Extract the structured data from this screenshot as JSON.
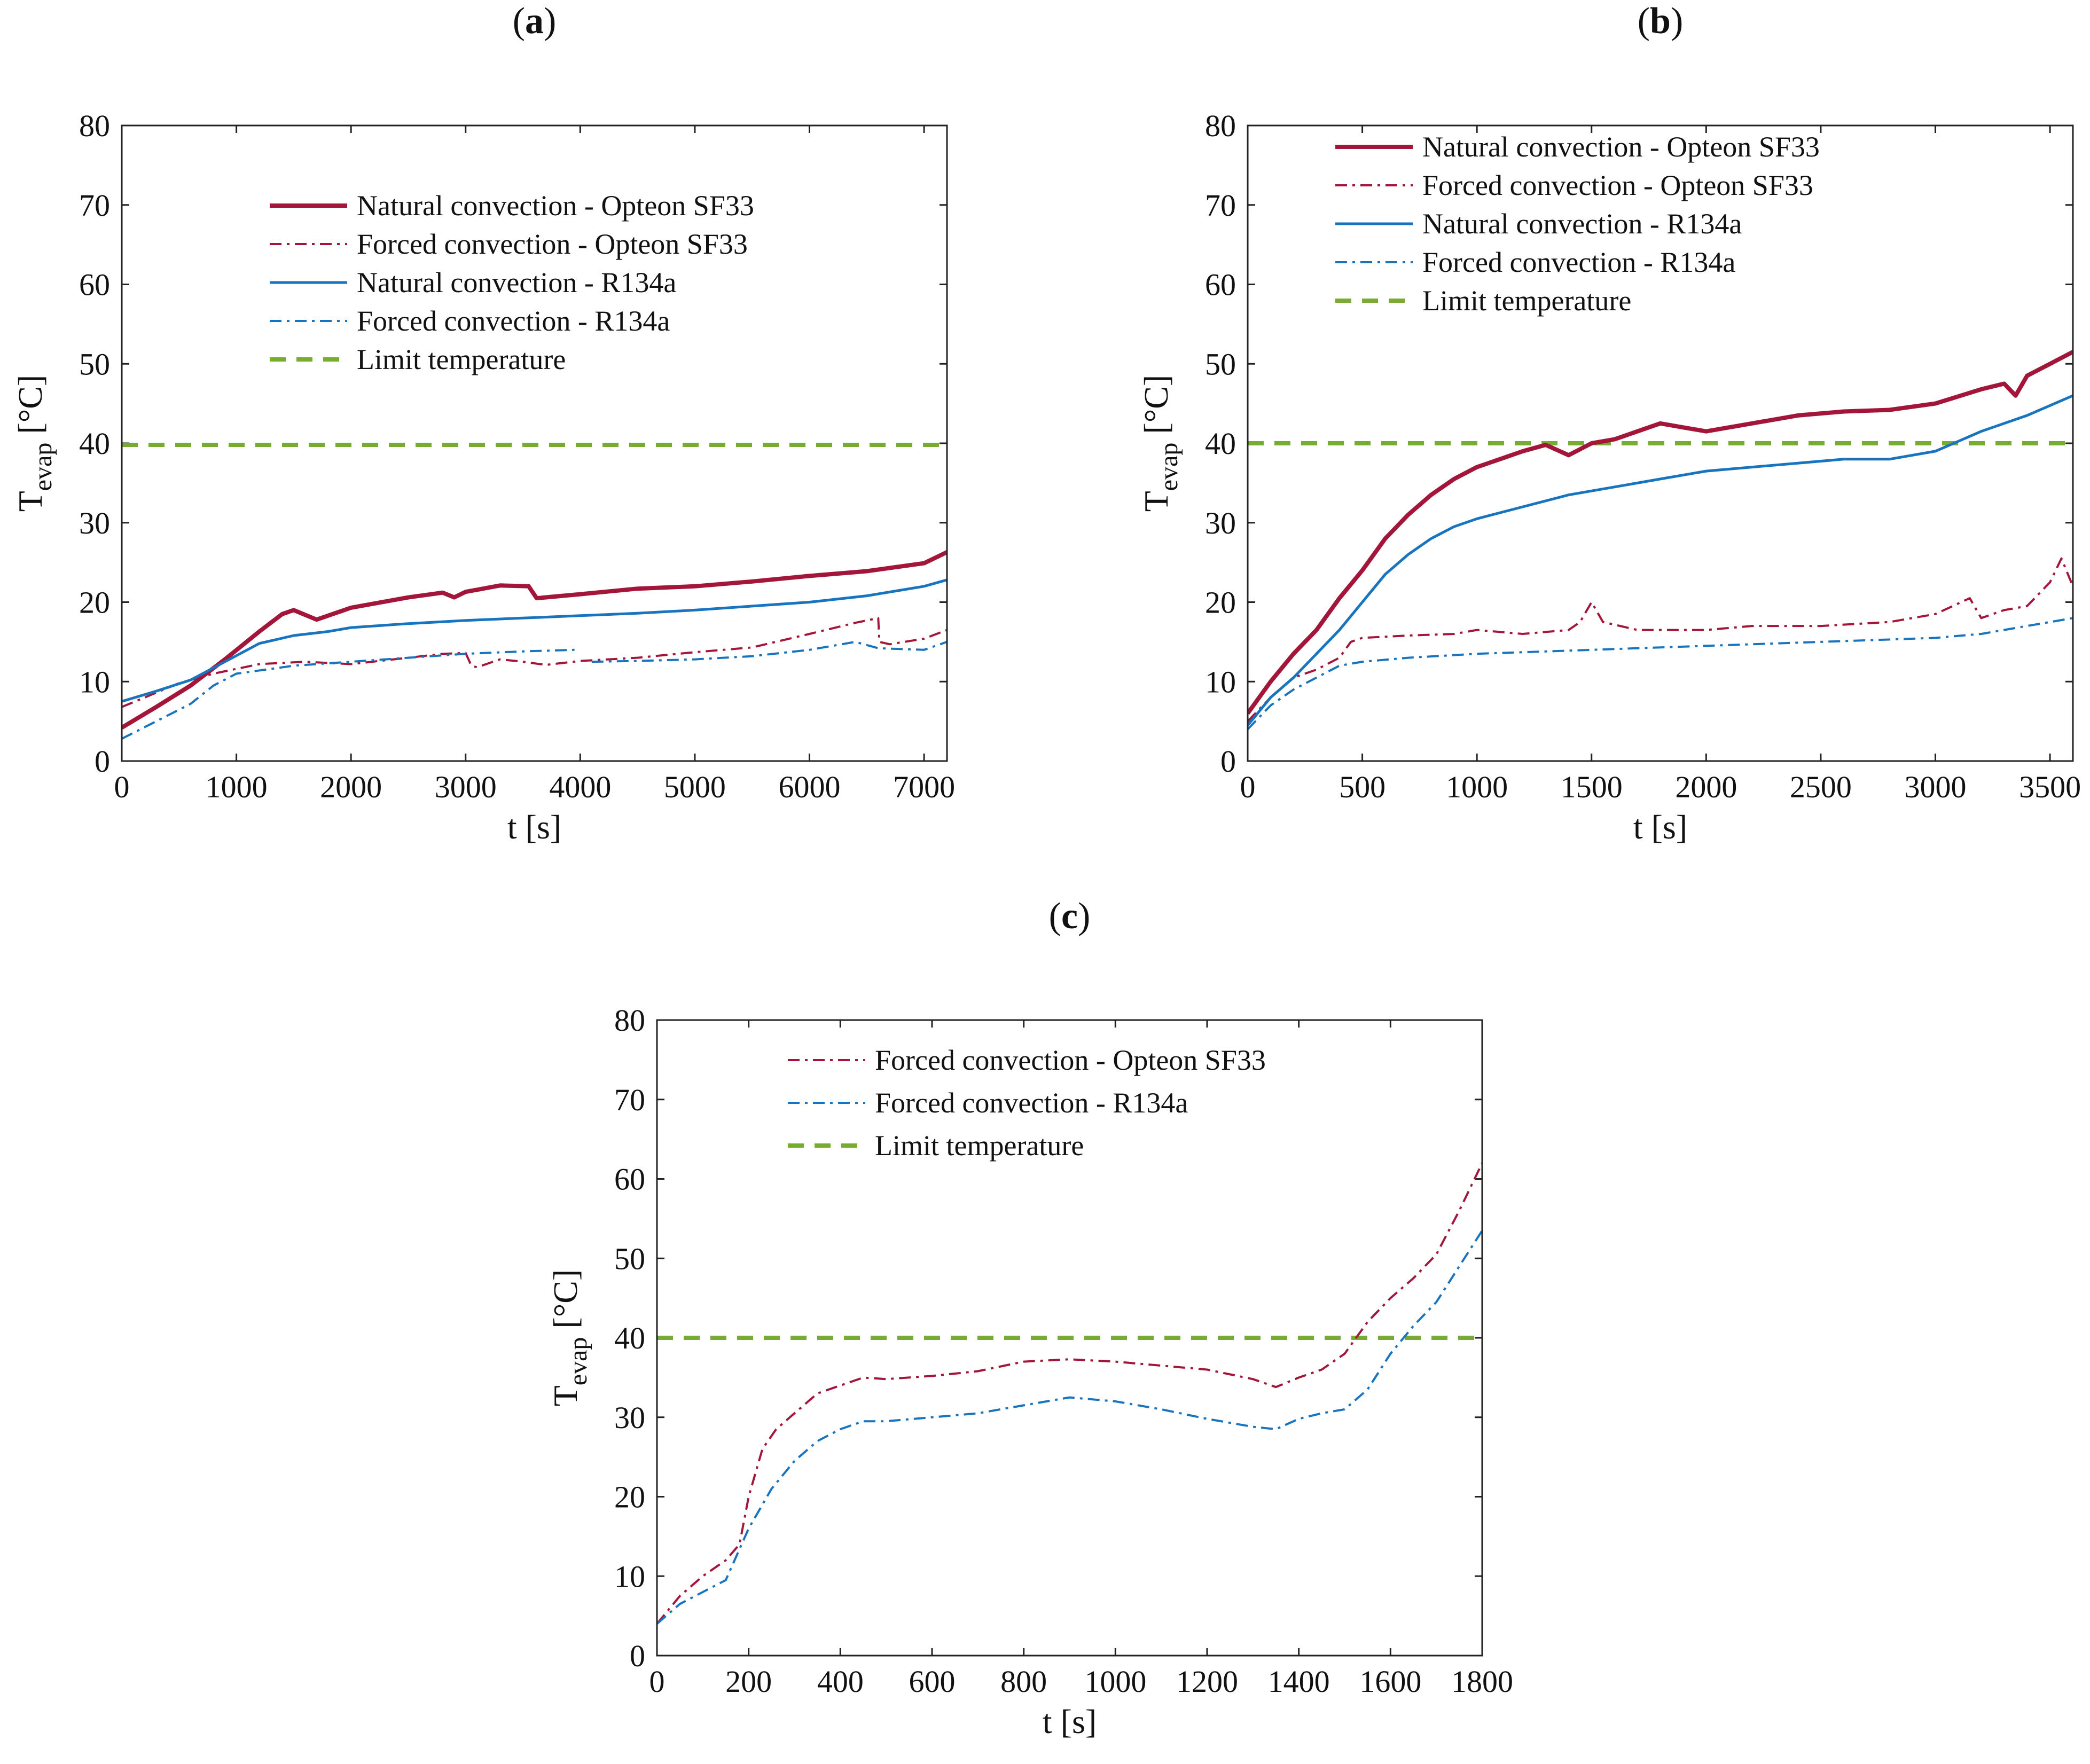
{
  "chart_data": [
    {
      "panel": "a",
      "title_parts": {
        "open": "(",
        "letter": "a",
        "close": ")"
      },
      "type": "line",
      "xlabel": "t [s]",
      "ylabel": {
        "main": "T",
        "sub": "evap",
        "unit": " [°C]"
      },
      "xlim": [
        0,
        7200
      ],
      "ylim": [
        0,
        80
      ],
      "xticks": [
        0,
        1000,
        2000,
        3000,
        4000,
        5000,
        6000,
        7000
      ],
      "yticks": [
        0,
        10,
        20,
        30,
        40,
        50,
        60,
        70,
        80
      ],
      "legend_position": "top-center",
      "series": [
        {
          "name": "Natural convection - Opteon SF33",
          "color": "#a3163a",
          "style": "solid-thick",
          "x": [
            0,
            300,
            600,
            900,
            1200,
            1400,
            1500,
            1700,
            2000,
            2500,
            2800,
            2900,
            3000,
            3300,
            3550,
            3620,
            4000,
            4500,
            5000,
            5500,
            6000,
            6500,
            7000,
            7200
          ],
          "y": [
            4.2,
            6.8,
            9.5,
            12.8,
            16.3,
            18.5,
            19.0,
            17.8,
            19.3,
            20.6,
            21.2,
            20.6,
            21.3,
            22.1,
            22.0,
            20.5,
            21.0,
            21.7,
            22.0,
            22.6,
            23.3,
            23.9,
            24.9,
            26.3
          ]
        },
        {
          "name": "Forced convection - Opteon SF33",
          "color": "#a3163a",
          "style": "dashdot",
          "x": [
            0,
            200,
            500,
            800,
            1200,
            1600,
            2000,
            2500,
            2800,
            3000,
            3050,
            3100,
            3300,
            3500,
            3700,
            4000,
            4500,
            5000,
            5500,
            6000,
            6400,
            6600,
            6610,
            6700,
            7000,
            7200
          ],
          "y": [
            6.8,
            8.0,
            9.8,
            11.0,
            12.2,
            12.5,
            12.2,
            13.0,
            13.5,
            13.6,
            12.0,
            11.8,
            12.8,
            12.5,
            12.1,
            12.6,
            13.0,
            13.7,
            14.3,
            16.0,
            17.4,
            18.0,
            15.0,
            14.7,
            15.4,
            16.5
          ]
        },
        {
          "name": "Natural convection - R134a",
          "color": "#1874bf",
          "style": "solid",
          "x": [
            0,
            300,
            600,
            900,
            1200,
            1500,
            1800,
            2000,
            2500,
            3000,
            3500,
            4000,
            4500,
            5000,
            5500,
            6000,
            6500,
            7000,
            7200
          ],
          "y": [
            7.5,
            8.8,
            10.2,
            12.5,
            14.8,
            15.8,
            16.3,
            16.8,
            17.3,
            17.7,
            18.0,
            18.3,
            18.6,
            19.0,
            19.5,
            20.0,
            20.8,
            22.0,
            22.8
          ]
        },
        {
          "name": "Forced convection - R134a",
          "color": "#1874bf",
          "style": "dashdot",
          "x": [
            0,
            300,
            600,
            800,
            1000,
            1500,
            2000,
            2500,
            3000,
            3500,
            3950,
            null,
            4100,
            4500,
            5000,
            5500,
            6000,
            6400,
            6600,
            7000,
            7200
          ],
          "y": [
            2.8,
            5.0,
            7.2,
            9.5,
            11.0,
            12.0,
            12.5,
            13.0,
            13.5,
            13.8,
            14.0,
            null,
            12.5,
            12.6,
            12.8,
            13.2,
            14.0,
            15.0,
            14.2,
            14.0,
            15.0
          ]
        },
        {
          "name": "Limit temperature",
          "color": "#77ac30",
          "style": "dashed-thick",
          "x": [
            0,
            7200
          ],
          "y": [
            39.8,
            39.8
          ]
        }
      ]
    },
    {
      "panel": "b",
      "title_parts": {
        "open": "(",
        "letter": "b",
        "close": ")"
      },
      "type": "line",
      "xlabel": "t [s]",
      "ylabel": {
        "main": "T",
        "sub": "evap",
        "unit": " [°C]"
      },
      "xlim": [
        0,
        3600
      ],
      "ylim": [
        0,
        80
      ],
      "xticks": [
        0,
        500,
        1000,
        1500,
        2000,
        2500,
        3000,
        3500
      ],
      "yticks": [
        0,
        10,
        20,
        30,
        40,
        50,
        60,
        70,
        80
      ],
      "legend_position": "top-left",
      "series": [
        {
          "name": "Natural convection - Opteon SF33",
          "color": "#a3163a",
          "style": "solid-thick",
          "x": [
            0,
            100,
            200,
            300,
            400,
            500,
            600,
            700,
            800,
            900,
            1000,
            1100,
            1200,
            1300,
            1400,
            1500,
            1600,
            1700,
            1800,
            1900,
            2000,
            2200,
            2400,
            2600,
            2800,
            3000,
            3200,
            3300,
            3350,
            3400,
            3500,
            3600
          ],
          "y": [
            6.0,
            10.0,
            13.5,
            16.5,
            20.5,
            24.0,
            28.0,
            31.0,
            33.5,
            35.5,
            37.0,
            38.0,
            39.0,
            39.8,
            38.5,
            40.0,
            40.5,
            41.5,
            42.5,
            42.0,
            41.5,
            42.5,
            43.5,
            44.0,
            44.2,
            45.0,
            46.8,
            47.5,
            46.0,
            48.5,
            50.0,
            51.5
          ]
        },
        {
          "name": "Forced convection - Opteon SF33",
          "color": "#a3163a",
          "style": "dashdot",
          "x": [
            0,
            100,
            200,
            300,
            400,
            450,
            500,
            700,
            900,
            1000,
            1200,
            1400,
            1450,
            1500,
            1550,
            1700,
            2000,
            2200,
            2500,
            2800,
            3000,
            3150,
            3200,
            3300,
            3400,
            3450,
            3500,
            3550,
            3600
          ],
          "y": [
            5.0,
            8.0,
            10.5,
            11.5,
            13.0,
            15.0,
            15.5,
            15.8,
            16.0,
            16.5,
            16.0,
            16.5,
            17.5,
            20.0,
            17.5,
            16.5,
            16.5,
            17.0,
            17.0,
            17.5,
            18.5,
            20.5,
            18.0,
            19.0,
            19.5,
            21.0,
            22.5,
            25.5,
            22.0
          ]
        },
        {
          "name": "Natural convection - R134a",
          "color": "#1874bf",
          "style": "solid",
          "x": [
            0,
            100,
            200,
            300,
            400,
            500,
            600,
            700,
            800,
            900,
            1000,
            1200,
            1400,
            1600,
            1800,
            2000,
            2200,
            2400,
            2600,
            2800,
            3000,
            3200,
            3400,
            3600
          ],
          "y": [
            4.5,
            8.0,
            10.5,
            13.5,
            16.5,
            20.0,
            23.5,
            26.0,
            28.0,
            29.5,
            30.5,
            32.0,
            33.5,
            34.5,
            35.5,
            36.5,
            37.0,
            37.5,
            38.0,
            38.0,
            39.0,
            41.5,
            43.5,
            46.0
          ]
        },
        {
          "name": "Forced convection - R134a",
          "color": "#1874bf",
          "style": "dashdot",
          "x": [
            0,
            100,
            200,
            300,
            400,
            500,
            700,
            1000,
            1500,
            2000,
            2500,
            3000,
            3200,
            3400,
            3600
          ],
          "y": [
            4.0,
            7.0,
            9.0,
            10.5,
            12.0,
            12.5,
            13.0,
            13.5,
            14.0,
            14.5,
            15.0,
            15.5,
            16.0,
            17.0,
            18.0
          ]
        },
        {
          "name": "Limit temperature",
          "color": "#77ac30",
          "style": "dashed-thick",
          "x": [
            0,
            3600
          ],
          "y": [
            40.0,
            40.0
          ]
        }
      ]
    },
    {
      "panel": "c",
      "title_parts": {
        "open": "(",
        "letter": "c",
        "close": ")"
      },
      "type": "line",
      "xlabel": "t [s]",
      "ylabel": {
        "main": "T",
        "sub": "evap",
        "unit": " [°C]"
      },
      "xlim": [
        0,
        1800
      ],
      "ylim": [
        0,
        80
      ],
      "xticks": [
        0,
        200,
        400,
        600,
        800,
        1000,
        1200,
        1400,
        1600,
        1800
      ],
      "yticks": [
        0,
        10,
        20,
        30,
        40,
        50,
        60,
        70,
        80
      ],
      "legend_position": "top-left",
      "series": [
        {
          "name": "Forced convection - Opteon SF33",
          "color": "#a3163a",
          "style": "dashdot",
          "x": [
            0,
            50,
            100,
            150,
            180,
            200,
            230,
            260,
            300,
            350,
            400,
            450,
            500,
            600,
            700,
            800,
            900,
            1000,
            1100,
            1200,
            1300,
            1350,
            1400,
            1450,
            1500,
            1550,
            1600,
            1650,
            1700,
            1750,
            1800
          ],
          "y": [
            4.0,
            7.5,
            10.0,
            12.0,
            14.0,
            20.0,
            26.0,
            28.5,
            30.5,
            33.0,
            34.0,
            35.0,
            34.8,
            35.2,
            35.8,
            37.0,
            37.3,
            37.0,
            36.5,
            36.0,
            34.8,
            33.8,
            35.0,
            36.0,
            38.0,
            42.0,
            45.0,
            47.5,
            50.5,
            56.0,
            62.0
          ]
        },
        {
          "name": "Forced convection - R134a",
          "color": "#1874bf",
          "style": "dashdot",
          "x": [
            0,
            50,
            100,
            150,
            200,
            250,
            300,
            350,
            400,
            450,
            500,
            600,
            700,
            800,
            900,
            1000,
            1100,
            1200,
            1300,
            1350,
            1400,
            1450,
            1500,
            1550,
            1600,
            1650,
            1700,
            1750,
            1800
          ],
          "y": [
            4.0,
            6.5,
            8.0,
            9.5,
            16.0,
            21.0,
            24.5,
            27.0,
            28.5,
            29.5,
            29.5,
            30.0,
            30.5,
            31.5,
            32.5,
            32.0,
            31.0,
            29.8,
            28.8,
            28.5,
            29.8,
            30.5,
            31.0,
            33.5,
            38.0,
            41.5,
            44.5,
            49.0,
            53.5
          ]
        },
        {
          "name": "Limit temperature",
          "color": "#77ac30",
          "style": "dashed-thick",
          "x": [
            0,
            1800
          ],
          "y": [
            40.0,
            40.0
          ]
        }
      ]
    }
  ]
}
